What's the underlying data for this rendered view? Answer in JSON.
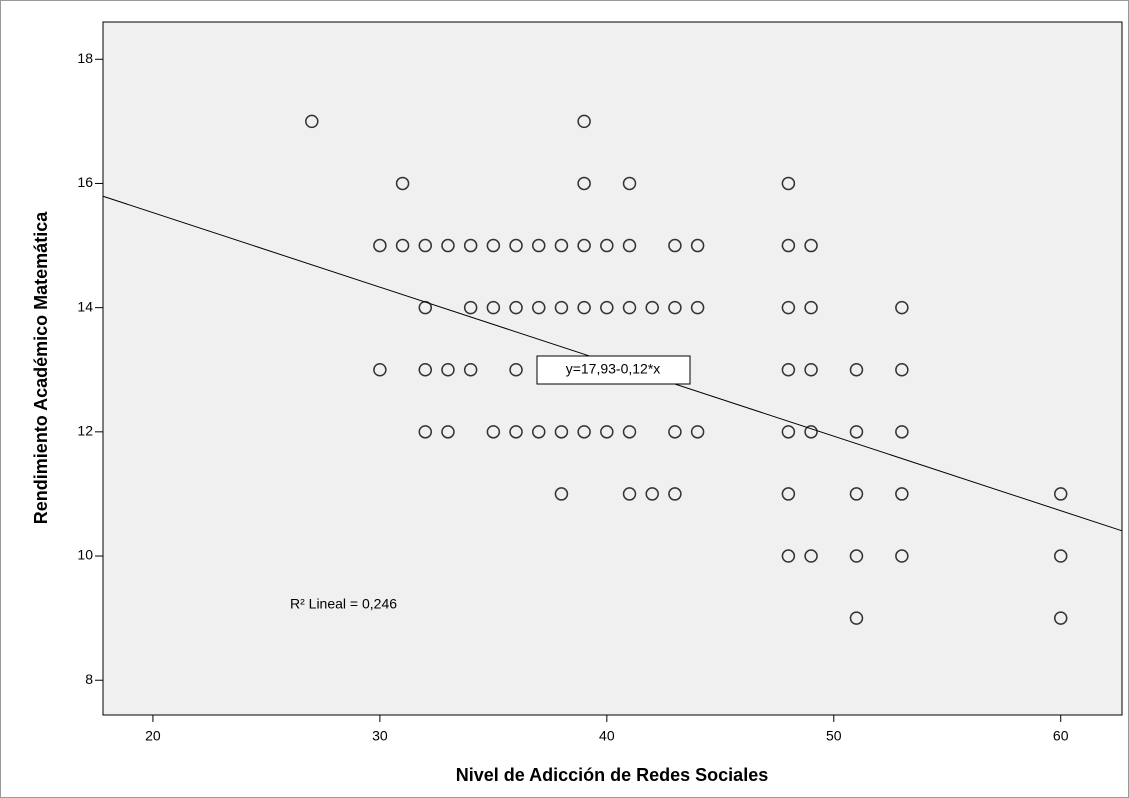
{
  "chart_data": {
    "type": "scatter",
    "x_label": "Nivel de Adicción de Redes Sociales",
    "y_label": "Rendimiento Académico Matemática",
    "x": [
      27,
      39,
      31,
      39,
      41,
      48,
      30,
      31,
      32,
      33,
      34,
      35,
      36,
      37,
      38,
      39,
      40,
      41,
      43,
      44,
      48,
      49,
      32,
      34,
      35,
      36,
      37,
      38,
      39,
      40,
      41,
      42,
      43,
      44,
      48,
      49,
      53,
      30,
      32,
      33,
      34,
      36,
      48,
      49,
      51,
      53,
      32,
      33,
      35,
      36,
      37,
      38,
      39,
      40,
      41,
      43,
      44,
      48,
      49,
      51,
      53,
      38,
      41,
      42,
      43,
      48,
      51,
      53,
      60,
      48,
      49,
      51,
      53,
      60,
      51,
      60
    ],
    "values": [
      17,
      17,
      16,
      16,
      16,
      16,
      15,
      15,
      15,
      15,
      15,
      15,
      15,
      15,
      15,
      15,
      15,
      15,
      15,
      15,
      15,
      15,
      14,
      14,
      14,
      14,
      14,
      14,
      14,
      14,
      14,
      14,
      14,
      14,
      14,
      14,
      14,
      13,
      13,
      13,
      13,
      13,
      13,
      13,
      13,
      13,
      12,
      12,
      12,
      12,
      12,
      12,
      12,
      12,
      12,
      12,
      12,
      12,
      12,
      12,
      12,
      11,
      11,
      11,
      11,
      11,
      11,
      11,
      11,
      10,
      10,
      10,
      10,
      10,
      9,
      9
    ],
    "marker_color": "#333333",
    "plot_background": "#f0f0f0",
    "fit_line": {
      "intercept": 17.93,
      "slope": -0.12,
      "label": "y=17,93-0,12*x"
    },
    "r2_annotation": "R² Lineal = 0,246",
    "xlim": [
      17.8,
      62.7
    ],
    "ylim": [
      7.44,
      18.6
    ],
    "xticks": [
      20,
      30,
      40,
      50,
      60
    ],
    "yticks": [
      8,
      10,
      12,
      14,
      16,
      18
    ]
  }
}
